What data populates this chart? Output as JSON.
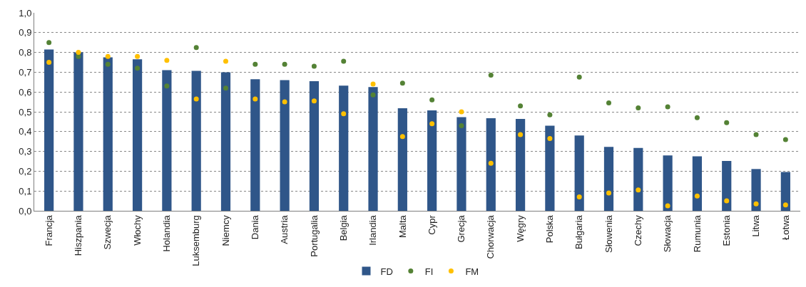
{
  "chart_data": {
    "type": "bar",
    "categories": [
      "Francja",
      "Hiszpania",
      "Szwecja",
      "Włochy",
      "Holandia",
      "Luksemburg",
      "Niemcy",
      "Dania",
      "Austria",
      "Portugalia",
      "Belgia",
      "Irlandia",
      "Malta",
      "Cypr",
      "Grecja",
      "Chorwacja",
      "Węgry",
      "Polska",
      "Bułgaria",
      "Słowenia",
      "Czechy",
      "Słowacja",
      "Rumunia",
      "Estonia",
      "Litwa",
      "Łotwa"
    ],
    "series": [
      {
        "name": "FD",
        "color": "#2f5689",
        "values": [
          0.815,
          0.8,
          0.775,
          0.765,
          0.71,
          0.707,
          0.7,
          0.665,
          0.66,
          0.655,
          0.632,
          0.625,
          0.518,
          0.507,
          0.473,
          0.468,
          0.464,
          0.43,
          0.38,
          0.323,
          0.317,
          0.28,
          0.275,
          0.252,
          0.211,
          0.196
        ]
      },
      {
        "name": "FI",
        "type": "scatter",
        "color": "#548235",
        "values": [
          0.85,
          0.78,
          0.74,
          0.72,
          0.63,
          0.825,
          0.62,
          0.74,
          0.74,
          0.73,
          0.755,
          0.585,
          0.645,
          0.56,
          0.43,
          0.685,
          0.53,
          0.485,
          0.675,
          0.545,
          0.52,
          0.525,
          0.47,
          0.445,
          0.385,
          0.36
        ]
      },
      {
        "name": "FM",
        "type": "scatter",
        "color": "#ffc000",
        "values": [
          0.75,
          0.8,
          0.78,
          0.78,
          0.76,
          0.565,
          0.755,
          0.565,
          0.55,
          0.555,
          0.49,
          0.64,
          0.375,
          0.44,
          0.5,
          0.24,
          0.385,
          0.365,
          0.07,
          0.09,
          0.105,
          0.025,
          0.075,
          0.05,
          0.035,
          0.03
        ]
      }
    ],
    "ylim": [
      0,
      1
    ],
    "yticks": [
      {
        "value": 0,
        "label": "0,0"
      },
      {
        "value": 0.1,
        "label": "0,1"
      },
      {
        "value": 0.2,
        "label": "0,2"
      },
      {
        "value": 0.3,
        "label": "0,3"
      },
      {
        "value": 0.4,
        "label": "0,4"
      },
      {
        "value": 0.5,
        "label": "0,5"
      },
      {
        "value": 0.6,
        "label": "0,6"
      },
      {
        "value": 0.7,
        "label": "0,7"
      },
      {
        "value": 0.8,
        "label": "0,8"
      },
      {
        "value": 0.9,
        "label": "0,9"
      },
      {
        "value": 1,
        "label": "1,0"
      }
    ],
    "grid": "y",
    "legend": "bottom",
    "marker": "circle"
  }
}
